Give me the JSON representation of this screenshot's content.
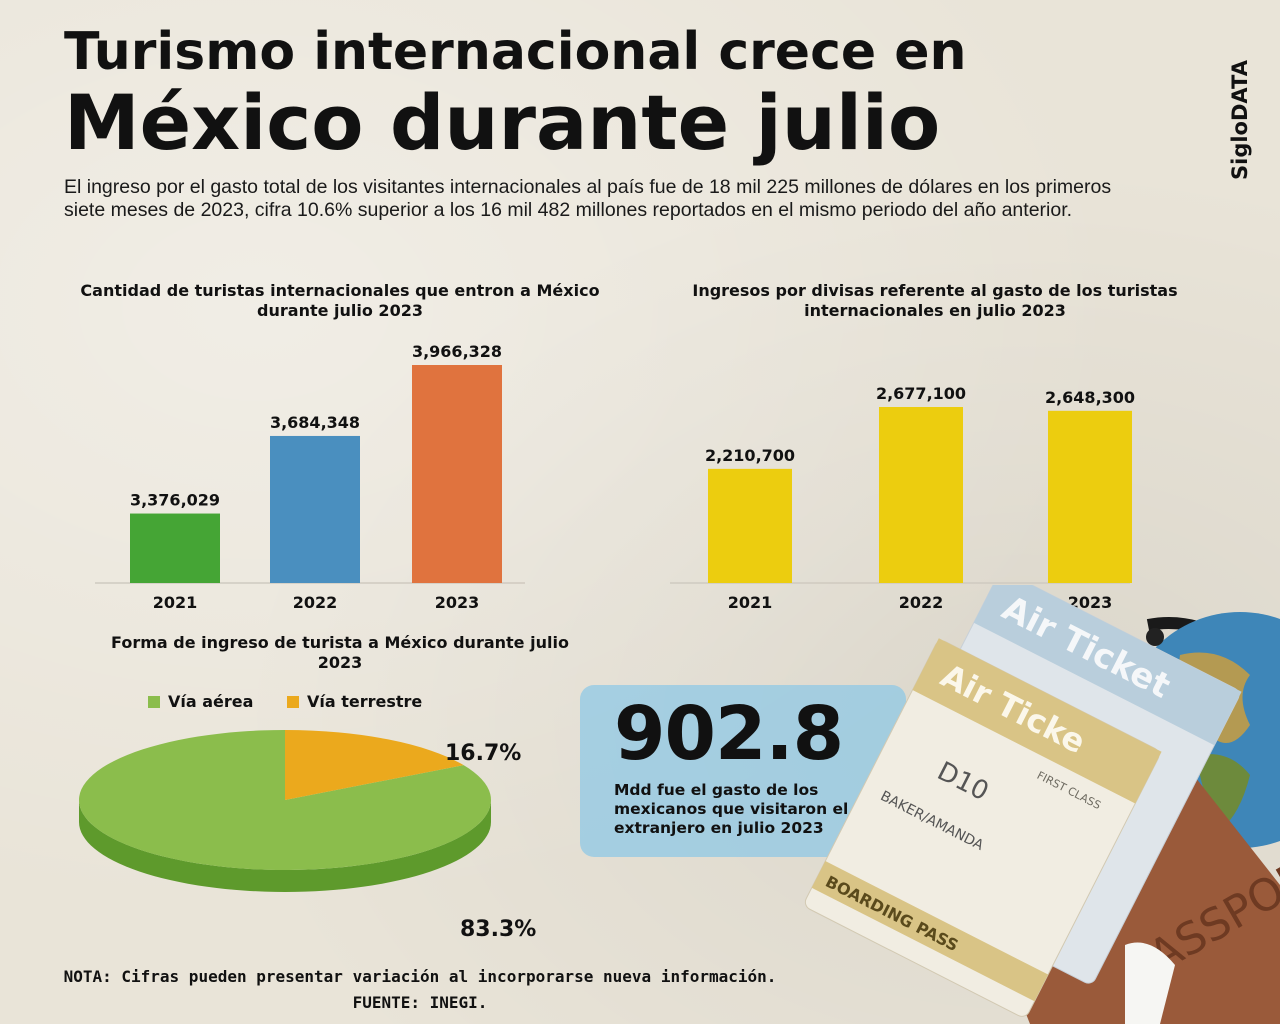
{
  "header": {
    "title_line1": "Turismo internacional crece en",
    "title_line2": "México durante julio",
    "brand": "SigloDATA",
    "intro": "El ingreso por el gasto total de los visitantes internacionales al país fue de 18 mil 225 millones de dólares en los primeros siete meses de 2023, cifra 10.6% superior a los 16 mil 482 millones reportados en el mismo periodo del año anterior."
  },
  "chart_data": [
    {
      "type": "bar",
      "title": "Cantidad de turistas internacionales que entron a México durante julio 2023",
      "categories": [
        "2021",
        "2022",
        "2023"
      ],
      "values": [
        3376029,
        3684348,
        3966328
      ],
      "value_labels": [
        "3,376,029",
        "3,684,348",
        "3,966,328"
      ],
      "colors": [
        "#45a535",
        "#4a8fbf",
        "#e0733e"
      ]
    },
    {
      "type": "bar",
      "title": "Ingresos por divisas referente al gasto de los turistas internacionales en julio 2023",
      "categories": [
        "2021",
        "2022",
        "2023"
      ],
      "values": [
        2210700,
        2677100,
        2648300
      ],
      "value_labels": [
        "2,210,700",
        "2,677,100",
        "2,648,300"
      ],
      "colors": [
        "#eccd0f",
        "#eccd0f",
        "#eccd0f"
      ]
    },
    {
      "type": "pie",
      "title": "Forma de ingreso de turista a México durante julio 2023",
      "labels": [
        "Vía aérea",
        "Vía terrestre"
      ],
      "values": [
        83.3,
        16.7
      ],
      "value_labels": [
        "83.3%",
        "16.7%"
      ],
      "colors": [
        "#8bbd4c",
        "#eba91d"
      ]
    }
  ],
  "callout": {
    "value": "902.8",
    "text": "Mdd fue el gasto de los mexicanos que visitaron el extranjero en julio 2023"
  },
  "footer": {
    "note": "NOTA: Cifras pueden presentar variación al incorporarse nueva información.",
    "source": "FUENTE: INEGI."
  },
  "decor": {
    "ticket_text_1": "Air Ticket",
    "ticket_text_2": "Air Ticke",
    "ticket_sub": "FIRST CLASS",
    "ticket_gate": "D10",
    "ticket_name": "BAKER/AMANDA",
    "ticket_boarding": "BOARDING PASS",
    "passport_text": "PASSPORT"
  }
}
